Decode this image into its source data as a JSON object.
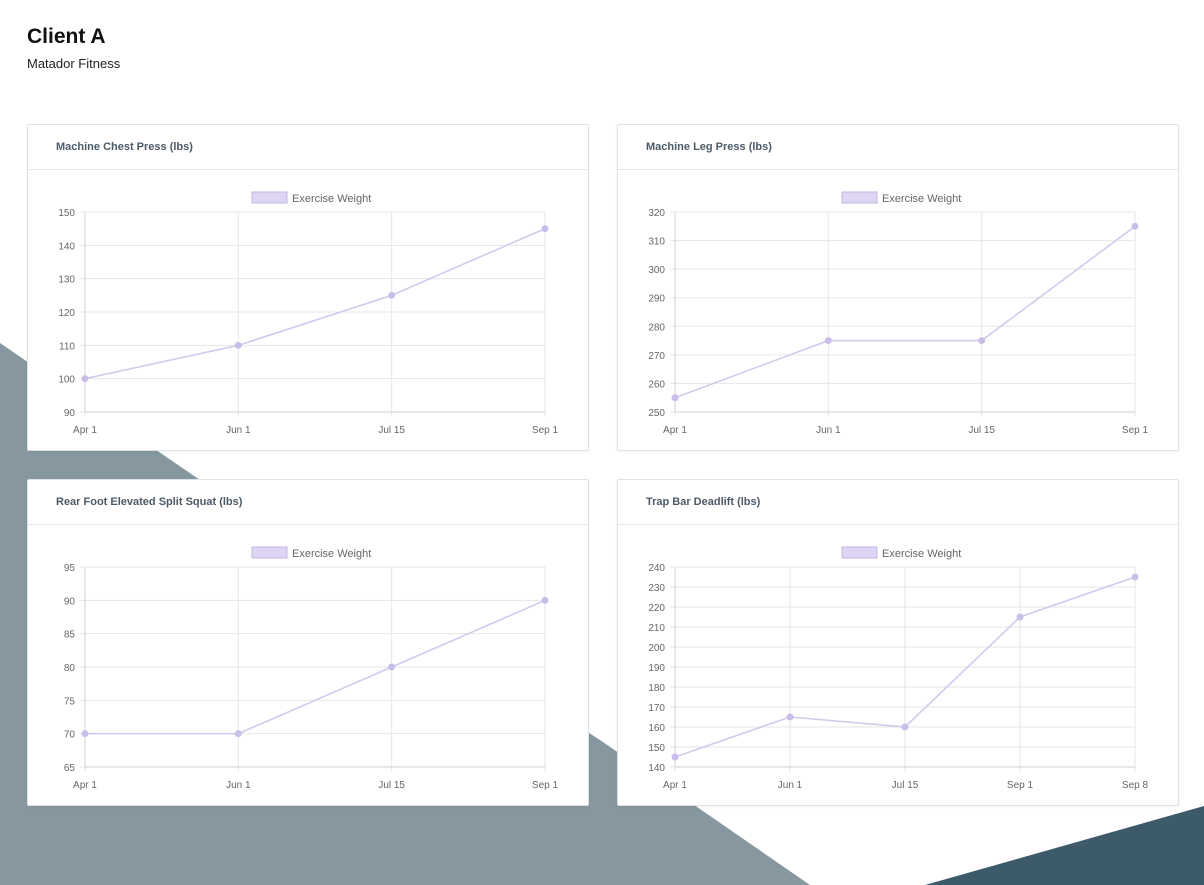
{
  "header": {
    "title": "Client A",
    "subtitle": "Matador Fitness"
  },
  "colors": {
    "series_line": "#d3c9ec",
    "series_point": "#c9bde9",
    "legend_fill": "#ddd5f2",
    "legend_border": "#c2b5e6",
    "grid": "#e6e6e6",
    "tick_text": "#666666",
    "background_shape": "#87979f",
    "background_shape_dark": "#3c5a69"
  },
  "chart_data": [
    {
      "type": "line",
      "title": "Machine Chest Press (lbs)",
      "legend": "Exercise Weight",
      "legend_position": "top",
      "categories": [
        "Apr 1",
        "Jun 1",
        "Jul 15",
        "Sep 1"
      ],
      "values": [
        100,
        110,
        125,
        145
      ],
      "ylim": [
        90,
        150
      ],
      "yticks": [
        90,
        100,
        110,
        120,
        130,
        140,
        150
      ],
      "grid": true
    },
    {
      "type": "line",
      "title": "Machine Leg Press (lbs)",
      "legend": "Exercise Weight",
      "legend_position": "top",
      "categories": [
        "Apr 1",
        "Jun 1",
        "Jul 15",
        "Sep 1"
      ],
      "values": [
        255,
        275,
        275,
        315
      ],
      "ylim": [
        250,
        320
      ],
      "yticks": [
        250,
        260,
        270,
        280,
        290,
        300,
        310,
        320
      ],
      "grid": true
    },
    {
      "type": "line",
      "title": "Rear Foot Elevated Split Squat (lbs)",
      "legend": "Exercise Weight",
      "legend_position": "top",
      "categories": [
        "Apr 1",
        "Jun 1",
        "Jul 15",
        "Sep 1"
      ],
      "values": [
        70,
        70,
        80,
        90
      ],
      "ylim": [
        65,
        95
      ],
      "yticks": [
        65,
        70,
        75,
        80,
        85,
        90,
        95
      ],
      "grid": true
    },
    {
      "type": "line",
      "title": "Trap Bar Deadlift (lbs)",
      "legend": "Exercise Weight",
      "legend_position": "top",
      "categories": [
        "Apr 1",
        "Jun 1",
        "Jul 15",
        "Sep 1",
        "Sep 8"
      ],
      "values": [
        145,
        165,
        160,
        215,
        235
      ],
      "ylim": [
        140,
        240
      ],
      "yticks": [
        140,
        150,
        160,
        170,
        180,
        190,
        200,
        210,
        220,
        230,
        240
      ],
      "grid": true
    }
  ]
}
